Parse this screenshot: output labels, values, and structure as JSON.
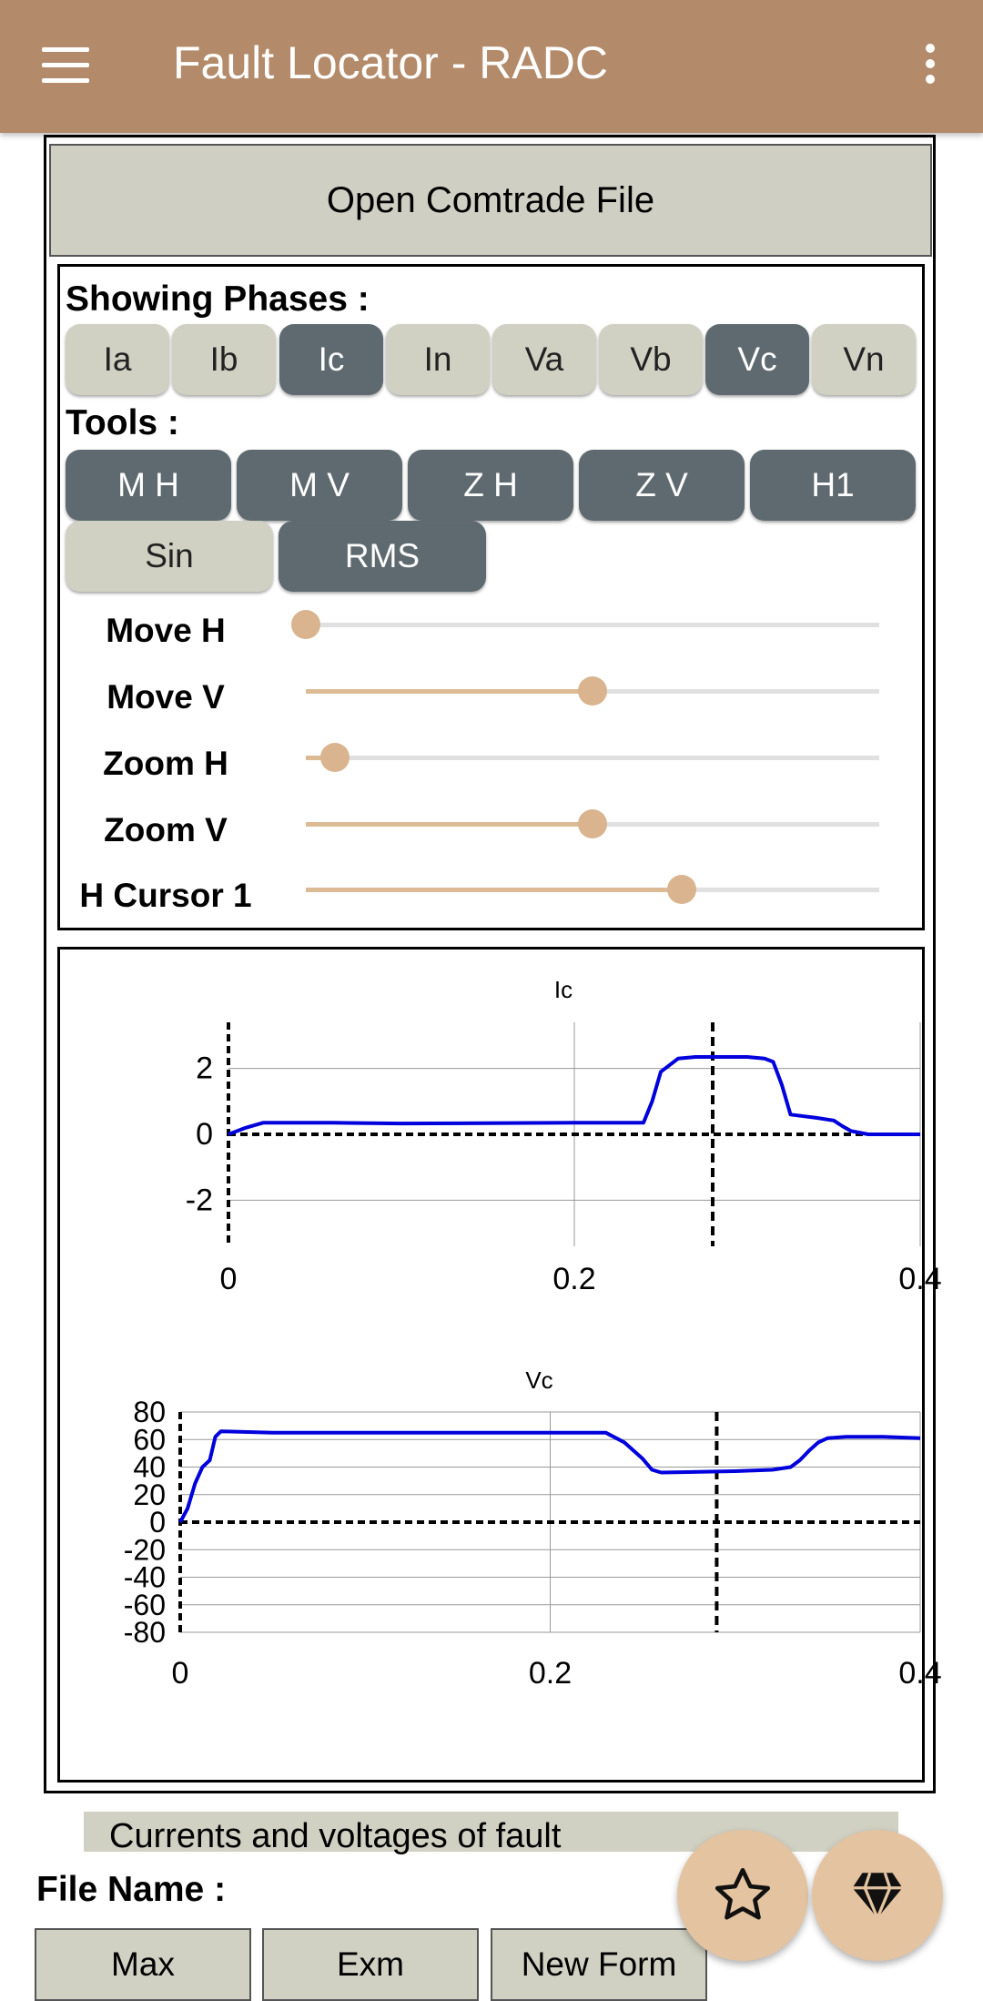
{
  "appbar": {
    "title": "Fault Locator - RADC"
  },
  "open_button": "Open Comtrade File",
  "phases": {
    "label": "Showing Phases  :",
    "items": [
      {
        "label": "Ia",
        "selected": false
      },
      {
        "label": "Ib",
        "selected": false
      },
      {
        "label": "Ic",
        "selected": true
      },
      {
        "label": "In",
        "selected": false
      },
      {
        "label": "Va",
        "selected": false
      },
      {
        "label": "Vb",
        "selected": false
      },
      {
        "label": "Vc",
        "selected": true
      },
      {
        "label": "Vn",
        "selected": false
      }
    ]
  },
  "tools": {
    "label": "Tools  :",
    "items": [
      {
        "label": "M H",
        "selected": true
      },
      {
        "label": "M V",
        "selected": true
      },
      {
        "label": "Z H",
        "selected": true
      },
      {
        "label": "Z V",
        "selected": true
      },
      {
        "label": "H1",
        "selected": true
      },
      {
        "label": "Sin",
        "selected": false
      },
      {
        "label": "RMS",
        "selected": true
      }
    ]
  },
  "sliders": [
    {
      "label": "Move H",
      "value": 0.0
    },
    {
      "label": "Move V",
      "value": 0.5
    },
    {
      "label": "Zoom H",
      "value": 0.05
    },
    {
      "label": "Zoom V",
      "value": 0.5
    },
    {
      "label": "H Cursor 1",
      "value": 0.655
    }
  ],
  "colors": {
    "appbar": "#b38b6a",
    "accent": "#d9b48e",
    "button": "#d0d0c3",
    "selected": "#5f6a70",
    "trace": "#0000dd"
  },
  "chart_data": [
    {
      "type": "line",
      "title": "Ic",
      "xlim": [
        0,
        0.4
      ],
      "ylim": [
        -3.4,
        3.4
      ],
      "xticks": [
        0,
        0.2,
        0.4
      ],
      "xtick_labels": [
        "0",
        "0.2",
        "0.4"
      ],
      "yticks": [
        2,
        0,
        -2
      ],
      "ytick_labels": [
        "2",
        "0",
        "-2"
      ],
      "cursor_x": 0.28,
      "series": [
        {
          "x": [
            0,
            0.01,
            0.02,
            0.06,
            0.1,
            0.2,
            0.23,
            0.24,
            0.245,
            0.25,
            0.26,
            0.27,
            0.3,
            0.31,
            0.315,
            0.32,
            0.325,
            0.34,
            0.35,
            0.355,
            0.36,
            0.37,
            0.39,
            0.4
          ],
          "y": [
            0,
            0.2,
            0.35,
            0.35,
            0.33,
            0.35,
            0.35,
            0.35,
            1.0,
            1.9,
            2.3,
            2.35,
            2.35,
            2.3,
            2.2,
            1.5,
            0.6,
            0.5,
            0.42,
            0.25,
            0.1,
            0.0,
            0.0,
            0.0
          ]
        }
      ]
    },
    {
      "type": "line",
      "title": "Vc",
      "xlim": [
        0,
        0.4
      ],
      "ylim": [
        -80,
        80
      ],
      "xticks": [
        0,
        0.2,
        0.4
      ],
      "xtick_labels": [
        "0",
        "0.2",
        "0.4"
      ],
      "yticks": [
        80,
        60,
        40,
        20,
        0,
        -20,
        -40,
        -60,
        -80
      ],
      "ytick_labels": [
        "80",
        "60",
        "40",
        "20",
        "0",
        "-20",
        "-40",
        "-60",
        "-80"
      ],
      "cursor_x": 0.29,
      "series": [
        {
          "x": [
            0,
            0.004,
            0.008,
            0.012,
            0.016,
            0.019,
            0.022,
            0.05,
            0.1,
            0.15,
            0.2,
            0.23,
            0.24,
            0.245,
            0.25,
            0.255,
            0.26,
            0.3,
            0.32,
            0.33,
            0.335,
            0.34,
            0.345,
            0.35,
            0.36,
            0.38,
            0.4
          ],
          "y": [
            0,
            10,
            28,
            40,
            45,
            62,
            66,
            65,
            65,
            65,
            65,
            65,
            58,
            52,
            46,
            38,
            36,
            37,
            38,
            40,
            45,
            52,
            58,
            61,
            62,
            62,
            61
          ]
        }
      ]
    }
  ],
  "info_bar": "Currents and voltages of fault",
  "file_name_label": "File Name :",
  "bottom_buttons": [
    "Max",
    "Exm",
    "New Form"
  ],
  "fabs": {
    "star": "star-icon",
    "gem": "gem-icon"
  }
}
